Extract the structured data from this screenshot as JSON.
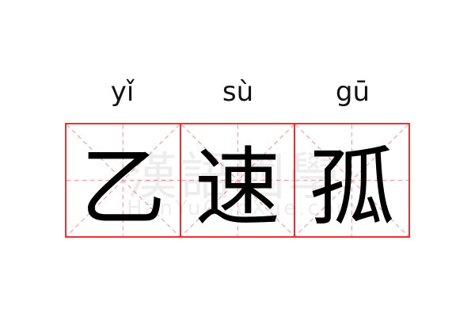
{
  "entries": [
    {
      "pinyin": "yǐ",
      "character": "乙"
    },
    {
      "pinyin": "sù",
      "character": "速"
    },
    {
      "pinyin": "gū",
      "character": "孤"
    }
  ],
  "watermark": {
    "text": "漢語國學",
    "url": "HanYuGuoXue.com"
  },
  "colors": {
    "grid_border": "#f03030",
    "guide_lines": "#f5a0a0",
    "text": "#000000"
  }
}
